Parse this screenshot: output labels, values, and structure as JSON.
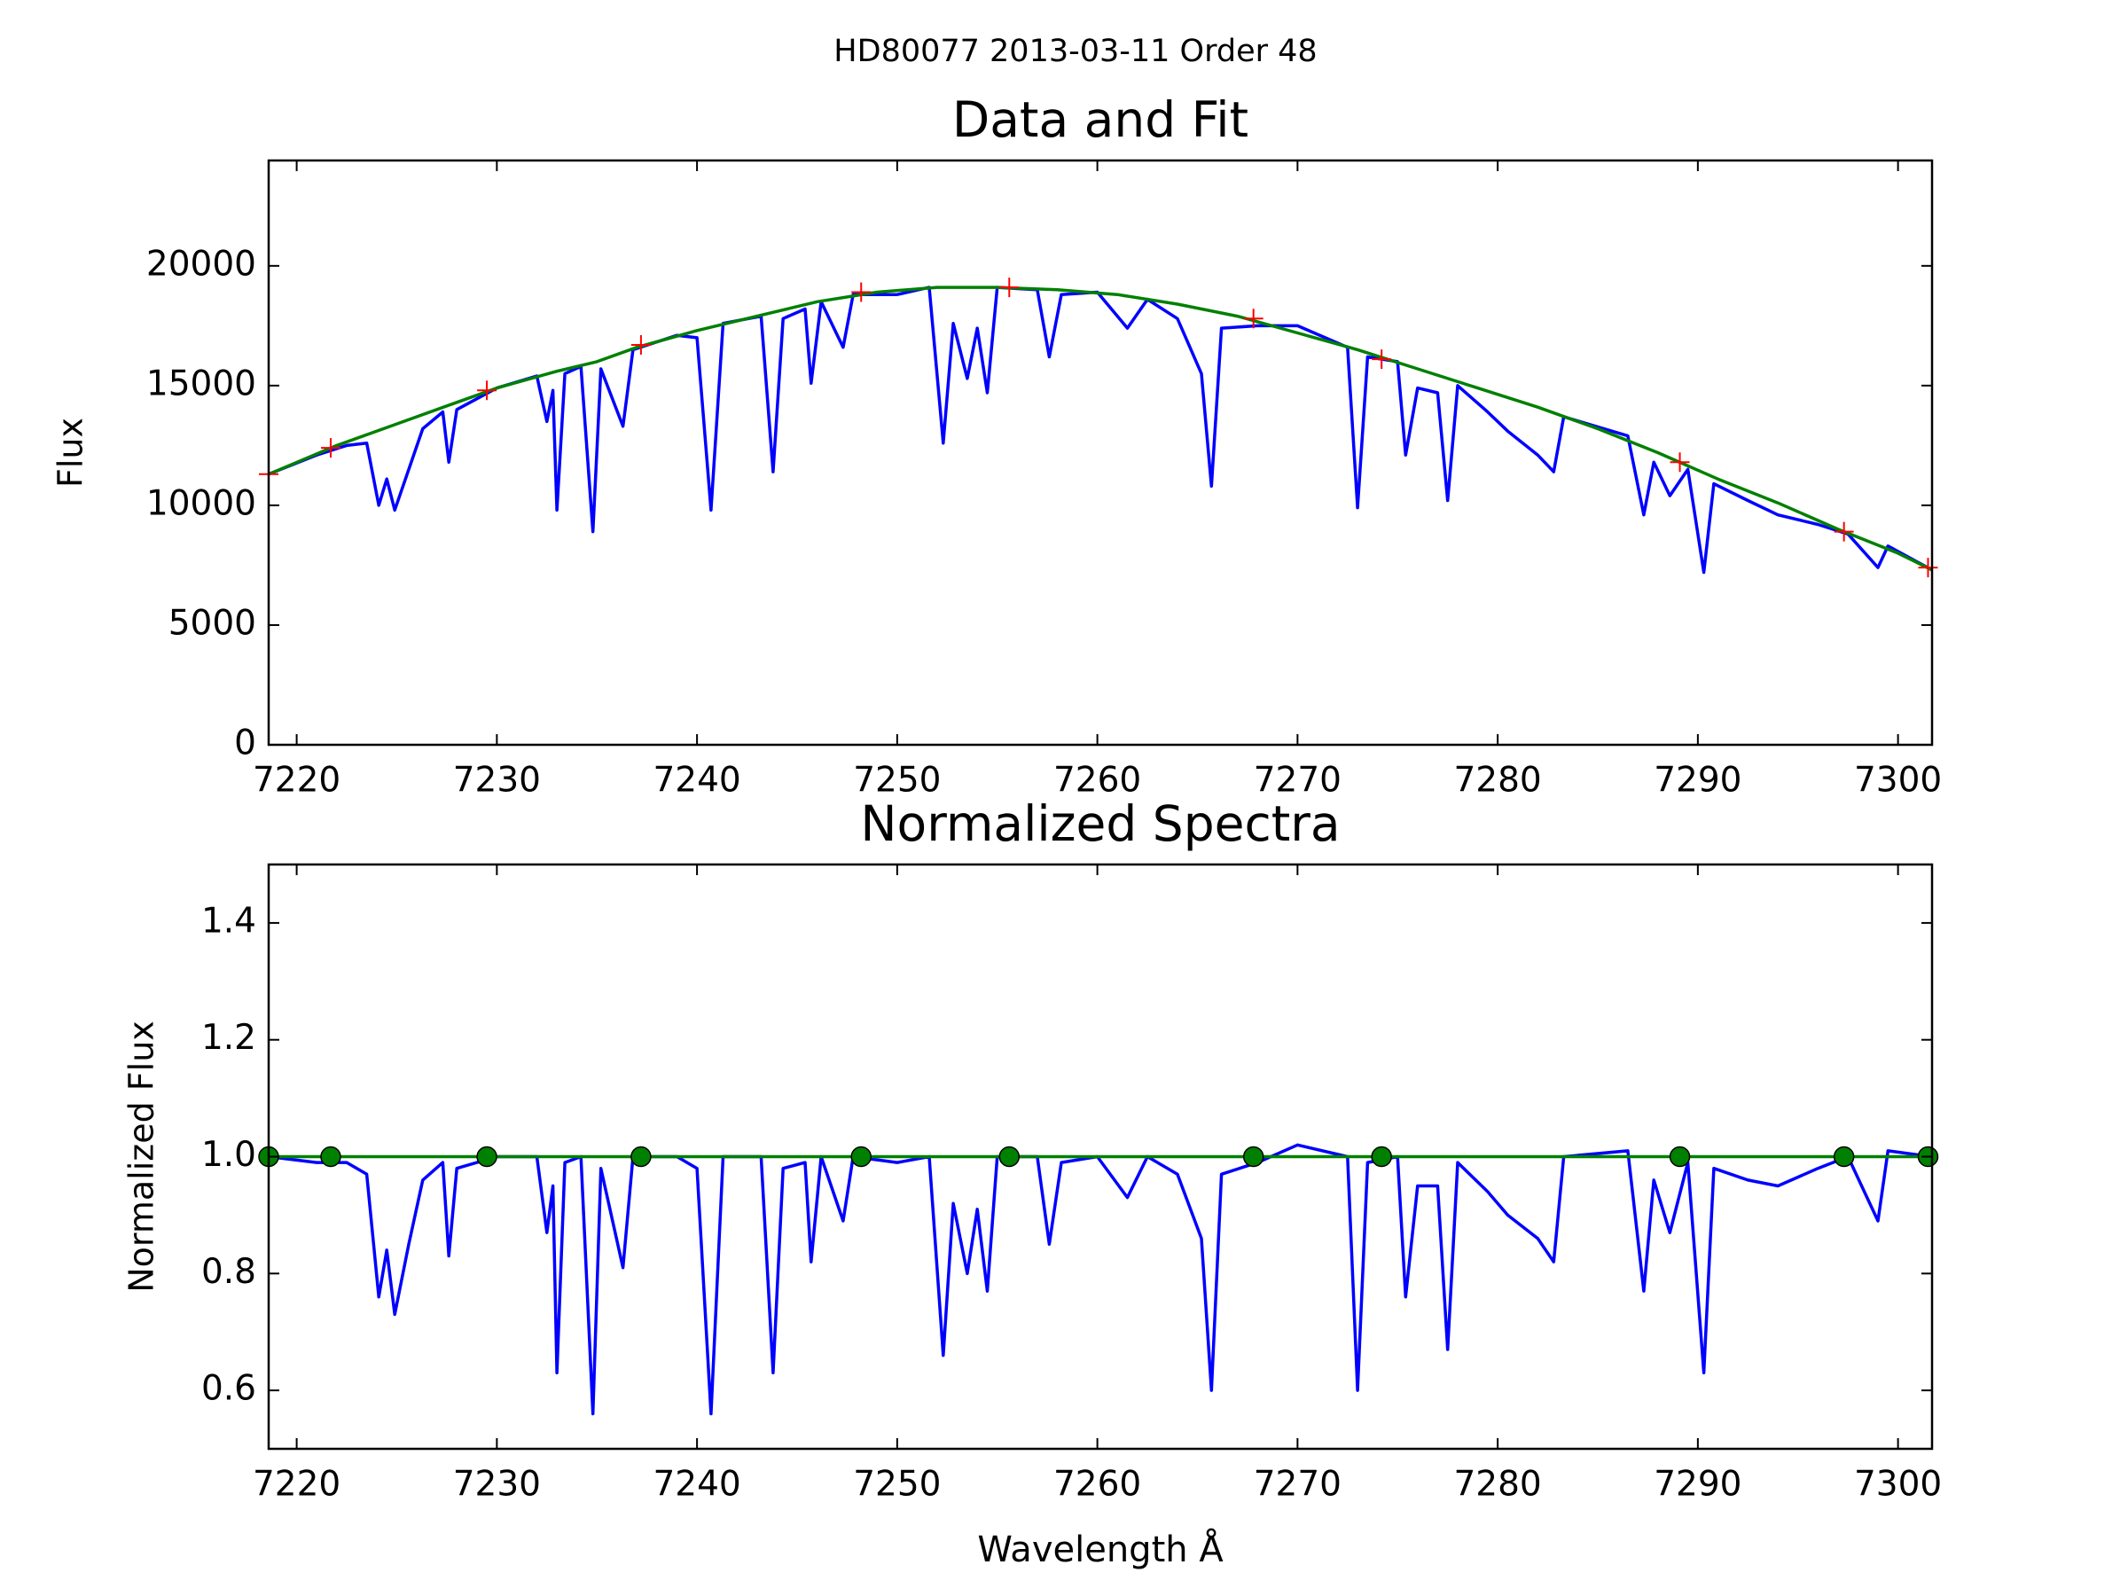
{
  "title": "HD80077 2013-03-11 Order 48",
  "chart_data": [
    {
      "type": "line",
      "title": "Data and Fit",
      "ylabel": "Flux",
      "xlim": [
        7218.6,
        7301.7
      ],
      "ylim": [
        0,
        24400
      ],
      "xticks": [
        7220,
        7230,
        7240,
        7250,
        7260,
        7270,
        7280,
        7290,
        7300
      ],
      "yticks": [
        0,
        5000,
        10000,
        15000,
        20000
      ],
      "series": [
        {
          "style": "line",
          "color": "#0000ff",
          "x": [
            7218.6,
            7221,
            7222.5,
            7223.5,
            7224.1,
            7224.5,
            7224.9,
            7225.6,
            7226.3,
            7227.3,
            7227.6,
            7228.0,
            7230,
            7232,
            7232.5,
            7232.8,
            7233.0,
            7233.4,
            7234.2,
            7234.8,
            7235.2,
            7236.3,
            7236.8,
            7239,
            7240,
            7240.7,
            7241.3,
            7243.2,
            7243.8,
            7244.3,
            7245.4,
            7245.7,
            7246.2,
            7247.3,
            7247.8,
            7250,
            7251.6,
            7252.3,
            7252.8,
            7253.5,
            7254.0,
            7254.5,
            7255.0,
            7257,
            7257.6,
            7258.2,
            7260,
            7261.5,
            7262.5,
            7264,
            7265.2,
            7265.7,
            7266.2,
            7268,
            7270,
            7272.5,
            7273.0,
            7273.5,
            7275,
            7275.4,
            7276.0,
            7277.0,
            7277.5,
            7278.0,
            7279.5,
            7280.5,
            7282,
            7282.8,
            7283.3,
            7286.5,
            7287.3,
            7287.8,
            7288.6,
            7289.5,
            7290.3,
            7290.8,
            7292.5,
            7294,
            7296,
            7297.5,
            7299.0,
            7299.5,
            7301.7
          ],
          "values": [
            11300,
            12100,
            12500,
            12600,
            10000,
            11100,
            9800,
            11500,
            13200,
            13900,
            11800,
            14000,
            14900,
            15400,
            13500,
            14800,
            9800,
            15500,
            15800,
            8900,
            15700,
            13300,
            16500,
            17100,
            17000,
            9800,
            17600,
            17900,
            11400,
            17800,
            18200,
            15100,
            18500,
            16600,
            18800,
            18800,
            19100,
            12600,
            17600,
            15300,
            17400,
            14700,
            19100,
            19000,
            16200,
            18800,
            18900,
            17400,
            18600,
            17800,
            15500,
            10800,
            17400,
            17500,
            17500,
            16600,
            9900,
            16200,
            16000,
            12100,
            14900,
            14700,
            10200,
            15000,
            13900,
            13100,
            12100,
            11400,
            13700,
            12900,
            9600,
            11800,
            10400,
            11500,
            7200,
            10900,
            10200,
            9600,
            9200,
            8800,
            7400,
            8300,
            7300
          ]
        },
        {
          "style": "line",
          "color": "#008000",
          "x": [
            7218.6,
            7222,
            7225,
            7228,
            7230,
            7233,
            7235,
            7237,
            7240,
            7243,
            7246,
            7249,
            7252,
            7255,
            7258,
            7261,
            7264,
            7267,
            7270,
            7273,
            7276,
            7279,
            7282,
            7285,
            7288,
            7291,
            7294,
            7297,
            7300,
            7301.7
          ],
          "values": [
            11300,
            12500,
            13400,
            14300,
            14900,
            15600,
            16000,
            16600,
            17300,
            17900,
            18500,
            18900,
            19100,
            19100,
            19000,
            18800,
            18400,
            17900,
            17200,
            16500,
            15700,
            14900,
            14100,
            13200,
            12200,
            11100,
            10100,
            9000,
            8000,
            7300
          ]
        },
        {
          "style": "plus",
          "color": "#ff0000",
          "x": [
            7218.6,
            7221.7,
            7229.5,
            7237.2,
            7248.2,
            7255.6,
            7267.8,
            7274.2,
            7289.1,
            7297.3,
            7301.5
          ],
          "values": [
            11300,
            12400,
            14800,
            16700,
            18900,
            19100,
            17800,
            16100,
            11800,
            8900,
            7400
          ]
        }
      ]
    },
    {
      "type": "line",
      "title": "Normalized Spectra",
      "ylabel": "Normalized Flux",
      "xlabel": "Wavelength Å",
      "xlim": [
        7218.6,
        7301.7
      ],
      "ylim": [
        0.5,
        1.5
      ],
      "xticks": [
        7220,
        7230,
        7240,
        7250,
        7260,
        7270,
        7280,
        7290,
        7300
      ],
      "yticks": [
        0.6,
        0.8,
        {
          "value": 1,
          "label": "1.0"
        },
        1.2,
        1.4
      ],
      "series": [
        {
          "style": "line",
          "color": "#0000ff",
          "x": [
            7218.6,
            7221,
            7222.5,
            7223.5,
            7224.1,
            7224.5,
            7224.9,
            7225.6,
            7226.3,
            7227.3,
            7227.6,
            7228.0,
            7230,
            7232,
            7232.5,
            7232.8,
            7233.0,
            7233.4,
            7234.2,
            7234.8,
            7235.2,
            7236.3,
            7236.8,
            7239,
            7240,
            7240.7,
            7241.3,
            7243.2,
            7243.8,
            7244.3,
            7245.4,
            7245.7,
            7246.2,
            7247.3,
            7247.8,
            7250,
            7251.6,
            7252.3,
            7252.8,
            7253.5,
            7254.0,
            7254.5,
            7255.0,
            7257,
            7257.6,
            7258.2,
            7260,
            7261.5,
            7262.5,
            7264,
            7265.2,
            7265.7,
            7266.2,
            7268,
            7270,
            7272.5,
            7273.0,
            7273.5,
            7275,
            7275.4,
            7276.0,
            7277.0,
            7277.5,
            7278.0,
            7279.5,
            7280.5,
            7282,
            7282.8,
            7283.3,
            7286.5,
            7287.3,
            7287.8,
            7288.6,
            7289.5,
            7290.3,
            7290.8,
            7292.5,
            7294,
            7296,
            7297.5,
            7299.0,
            7299.5,
            7301.7
          ],
          "values": [
            1.0,
            0.99,
            0.99,
            0.97,
            0.76,
            0.84,
            0.73,
            0.85,
            0.96,
            0.99,
            0.83,
            0.98,
            1.0,
            1.0,
            0.87,
            0.95,
            0.63,
            0.99,
            1.0,
            0.56,
            0.98,
            0.81,
            1.0,
            1.0,
            0.98,
            0.56,
            1.0,
            1.0,
            0.63,
            0.98,
            0.99,
            0.82,
            1.0,
            0.89,
            1.0,
            0.99,
            1.0,
            0.66,
            0.92,
            0.8,
            0.91,
            0.77,
            1.0,
            1.0,
            0.85,
            0.99,
            1.0,
            0.93,
            1.0,
            0.97,
            0.86,
            0.6,
            0.97,
            0.99,
            1.02,
            1.0,
            0.6,
            0.99,
            1.0,
            0.76,
            0.95,
            0.95,
            0.67,
            0.99,
            0.94,
            0.9,
            0.86,
            0.82,
            1.0,
            1.01,
            0.77,
            0.96,
            0.87,
            0.99,
            0.63,
            0.98,
            0.96,
            0.95,
            0.98,
            1.0,
            0.89,
            1.01,
            1.0
          ]
        },
        {
          "style": "line",
          "color": "#008000",
          "x": [
            7218.6,
            7301.7
          ],
          "values": [
            1,
            1
          ]
        },
        {
          "style": "dot",
          "color": "#008000",
          "x": [
            7218.6,
            7221.7,
            7229.5,
            7237.2,
            7248.2,
            7255.6,
            7267.8,
            7274.2,
            7289.1,
            7297.3,
            7301.5
          ],
          "values": [
            1,
            1,
            1,
            1,
            1,
            1,
            1,
            1,
            1,
            1,
            1
          ]
        }
      ]
    }
  ]
}
